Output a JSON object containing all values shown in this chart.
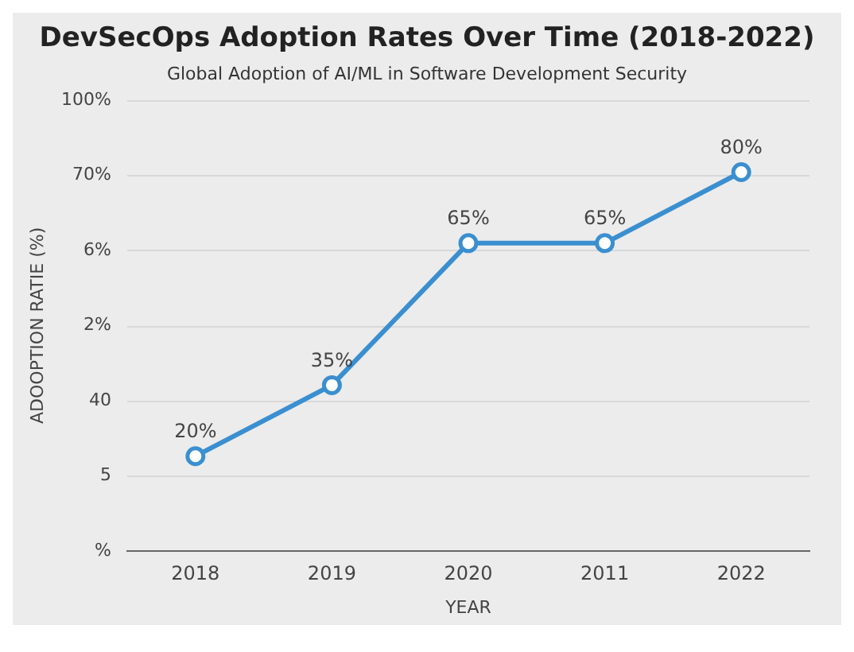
{
  "chart_data": {
    "type": "line",
    "title": "DevSecOps Adoption Rates Over Time (2018-2022)",
    "subtitle": "Global Adoption of AI/ML in Software Development Security",
    "xlabel": "YEAR",
    "ylabel": "ADOOPTION RATIE (%)",
    "categories": [
      "2018",
      "2019",
      "2020",
      "2011",
      "2022"
    ],
    "values": [
      20,
      35,
      65,
      65,
      80
    ],
    "value_labels": [
      "20%",
      "35%",
      "65%",
      "65%",
      "80%"
    ],
    "color": "#3a8fd0",
    "marker": "circle",
    "line_style": "solid",
    "grid": "y",
    "annotations": [
      "%",
      "5",
      "40",
      "2%",
      "6%",
      "70%",
      "100%"
    ]
  }
}
